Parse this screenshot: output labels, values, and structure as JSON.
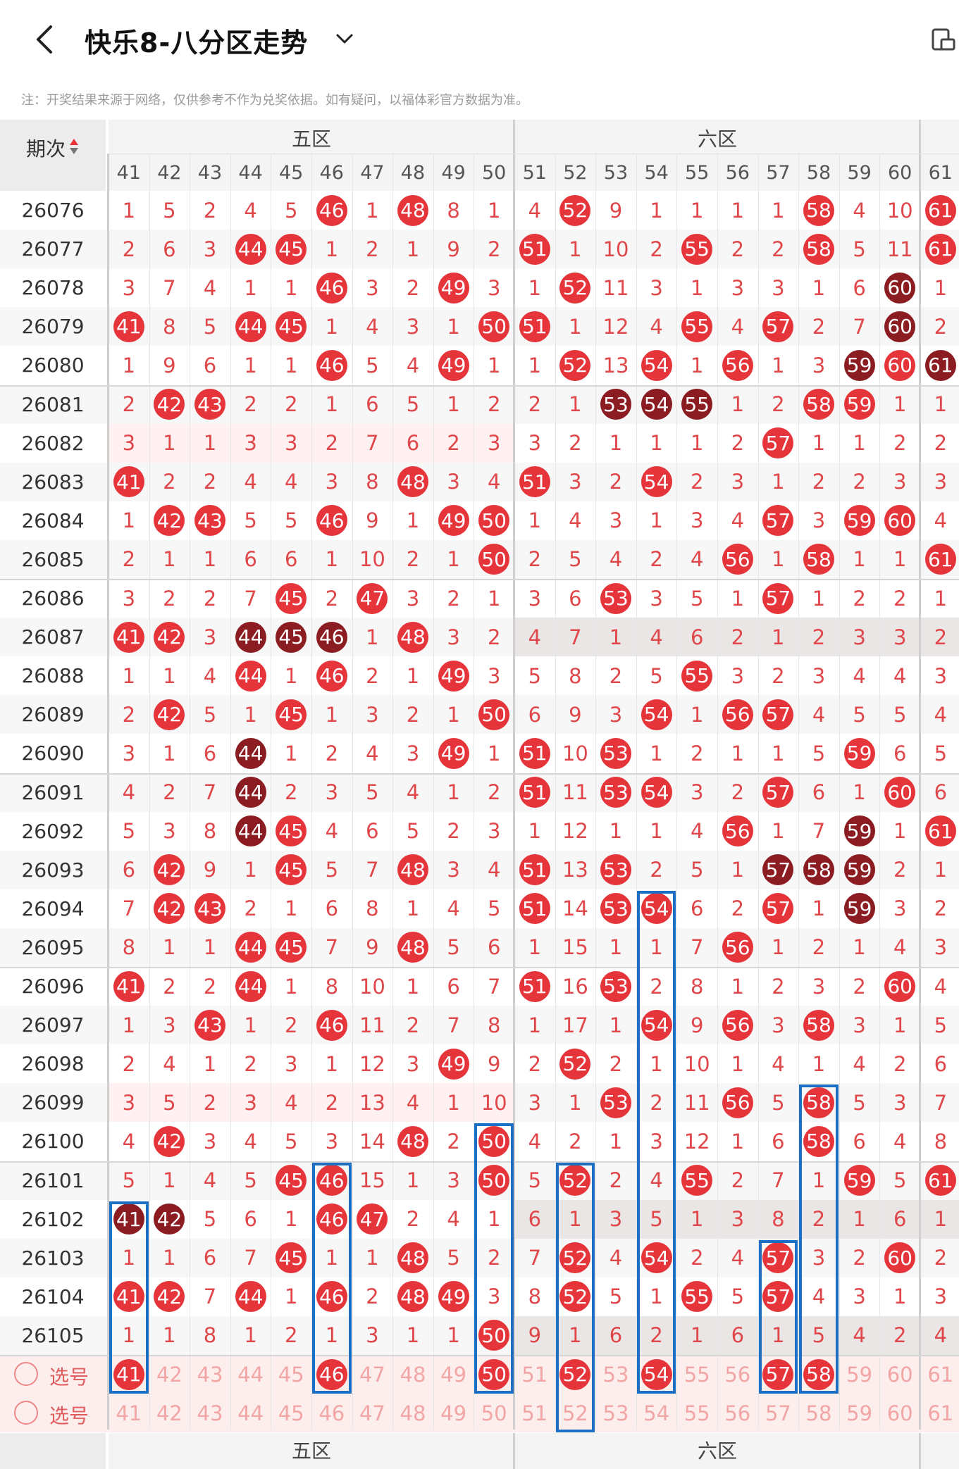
{
  "header": {
    "title": "快乐8-八分区走势",
    "notice": "注：开奖结果来源于网络，仅供参考不作为兑奖依据。如有疑问，以福体彩官方数据为准。"
  },
  "table": {
    "period_header": "期次",
    "zones": [
      "五区",
      "六区"
    ],
    "columns": [
      41,
      42,
      43,
      44,
      45,
      46,
      47,
      48,
      49,
      50,
      51,
      52,
      53,
      54,
      55,
      56,
      57,
      58,
      59,
      60,
      61
    ],
    "select_label": "选号",
    "rows": [
      {
        "period": "26076",
        "cells": [
          "1",
          "5",
          "2",
          "4",
          "5",
          "46",
          "1",
          "48",
          "8",
          "1",
          "4",
          "52",
          "9",
          "1",
          "1",
          "1",
          "1",
          "58",
          "4",
          "10",
          "61"
        ]
      },
      {
        "period": "26077",
        "cells": [
          "2",
          "6",
          "3",
          "44",
          "45",
          "1",
          "2",
          "1",
          "9",
          "2",
          "51",
          "1",
          "10",
          "2",
          "55",
          "2",
          "2",
          "58",
          "5",
          "11",
          "61"
        ]
      },
      {
        "period": "26078",
        "cells": [
          "3",
          "7",
          "4",
          "1",
          "1",
          "46",
          "3",
          "2",
          "49",
          "3",
          "1",
          "52",
          "11",
          "3",
          "1",
          "3",
          "3",
          "1",
          "6",
          "60d",
          "1"
        ]
      },
      {
        "period": "26079",
        "cells": [
          "41",
          "8",
          "5",
          "44",
          "45",
          "1",
          "4",
          "3",
          "1",
          "50",
          "51",
          "1",
          "12",
          "4",
          "55",
          "4",
          "57",
          "2",
          "7",
          "60d",
          "2"
        ]
      },
      {
        "period": "26080",
        "cells": [
          "1",
          "9",
          "6",
          "1",
          "1",
          "46",
          "5",
          "4",
          "49",
          "1",
          "1",
          "52",
          "13",
          "54",
          "1",
          "56",
          "1",
          "3",
          "59d",
          "60",
          "61d"
        ]
      },
      {
        "period": "26081",
        "cells": [
          "2",
          "42",
          "43",
          "2",
          "2",
          "1",
          "6",
          "5",
          "1",
          "2",
          "2",
          "1",
          "53d",
          "54d",
          "55d",
          "1",
          "2",
          "58",
          "59",
          "1",
          "1"
        ]
      },
      {
        "period": "26082",
        "cells": [
          "3",
          "1",
          "1",
          "3",
          "3",
          "2",
          "7",
          "6",
          "2",
          "3",
          "3",
          "2",
          "1",
          "1",
          "1",
          "2",
          "57",
          "1",
          "1",
          "2",
          "2"
        ]
      },
      {
        "period": "26083",
        "cells": [
          "41",
          "2",
          "2",
          "4",
          "4",
          "3",
          "8",
          "48",
          "3",
          "4",
          "51",
          "3",
          "2",
          "54",
          "2",
          "3",
          "1",
          "2",
          "2",
          "3",
          "3"
        ]
      },
      {
        "period": "26084",
        "cells": [
          "1",
          "42",
          "43",
          "5",
          "5",
          "46",
          "9",
          "1",
          "49",
          "50",
          "1",
          "4",
          "3",
          "1",
          "3",
          "4",
          "57",
          "3",
          "59",
          "60",
          "4"
        ]
      },
      {
        "period": "26085",
        "cells": [
          "2",
          "1",
          "1",
          "6",
          "6",
          "1",
          "10",
          "2",
          "1",
          "50",
          "2",
          "5",
          "4",
          "2",
          "4",
          "56",
          "1",
          "58",
          "1",
          "1",
          "61"
        ]
      },
      {
        "period": "26086",
        "cells": [
          "3",
          "2",
          "2",
          "7",
          "45",
          "2",
          "47",
          "3",
          "2",
          "1",
          "3",
          "6",
          "53",
          "3",
          "5",
          "1",
          "57",
          "1",
          "2",
          "2",
          "1"
        ]
      },
      {
        "period": "26087",
        "cells": [
          "41",
          "42",
          "3",
          "44d",
          "45d",
          "46d",
          "1",
          "48",
          "3",
          "2",
          "4",
          "7",
          "1",
          "4",
          "6",
          "2",
          "1",
          "2",
          "3",
          "3",
          "2"
        ]
      },
      {
        "period": "26088",
        "cells": [
          "1",
          "1",
          "4",
          "44",
          "1",
          "46",
          "2",
          "1",
          "49",
          "3",
          "5",
          "8",
          "2",
          "5",
          "55",
          "3",
          "2",
          "3",
          "4",
          "4",
          "3"
        ]
      },
      {
        "period": "26089",
        "cells": [
          "2",
          "42",
          "5",
          "1",
          "45",
          "1",
          "3",
          "2",
          "1",
          "50",
          "6",
          "9",
          "3",
          "54",
          "1",
          "56",
          "57",
          "4",
          "5",
          "5",
          "4"
        ]
      },
      {
        "period": "26090",
        "cells": [
          "3",
          "1",
          "6",
          "44d",
          "1",
          "2",
          "4",
          "3",
          "49",
          "1",
          "51",
          "10",
          "53",
          "1",
          "2",
          "1",
          "1",
          "5",
          "59",
          "6",
          "5"
        ]
      },
      {
        "period": "26091",
        "cells": [
          "4",
          "2",
          "7",
          "44d",
          "2",
          "3",
          "5",
          "4",
          "1",
          "2",
          "51",
          "11",
          "53",
          "54",
          "3",
          "2",
          "57",
          "6",
          "1",
          "60",
          "6"
        ]
      },
      {
        "period": "26092",
        "cells": [
          "5",
          "3",
          "8",
          "44d",
          "45",
          "4",
          "6",
          "5",
          "2",
          "3",
          "1",
          "12",
          "1",
          "1",
          "4",
          "56",
          "1",
          "7",
          "59d",
          "1",
          "61"
        ]
      },
      {
        "period": "26093",
        "cells": [
          "6",
          "42",
          "9",
          "1",
          "45",
          "5",
          "7",
          "48",
          "3",
          "4",
          "51",
          "13",
          "53",
          "2",
          "5",
          "1",
          "57d",
          "58d",
          "59d",
          "2",
          "1"
        ]
      },
      {
        "period": "26094",
        "cells": [
          "7",
          "42",
          "43",
          "2",
          "1",
          "6",
          "8",
          "1",
          "4",
          "5",
          "51",
          "14",
          "53",
          "54",
          "6",
          "2",
          "57",
          "1",
          "59d",
          "3",
          "2"
        ]
      },
      {
        "period": "26095",
        "cells": [
          "8",
          "1",
          "1",
          "44",
          "45",
          "7",
          "9",
          "48",
          "5",
          "6",
          "1",
          "15",
          "1",
          "1",
          "7",
          "56",
          "1",
          "2",
          "1",
          "4",
          "3"
        ]
      },
      {
        "period": "26096",
        "cells": [
          "41",
          "2",
          "2",
          "44",
          "1",
          "8",
          "10",
          "1",
          "6",
          "7",
          "51",
          "16",
          "53",
          "2",
          "8",
          "1",
          "2",
          "3",
          "2",
          "60",
          "4"
        ]
      },
      {
        "period": "26097",
        "cells": [
          "1",
          "3",
          "43",
          "1",
          "2",
          "46",
          "11",
          "2",
          "7",
          "8",
          "1",
          "17",
          "1",
          "54",
          "9",
          "56",
          "3",
          "58",
          "3",
          "1",
          "5"
        ]
      },
      {
        "period": "26098",
        "cells": [
          "2",
          "4",
          "1",
          "2",
          "3",
          "1",
          "12",
          "3",
          "49",
          "9",
          "2",
          "52",
          "2",
          "1",
          "10",
          "1",
          "4",
          "1",
          "4",
          "2",
          "6"
        ]
      },
      {
        "period": "26099",
        "cells": [
          "3",
          "5",
          "2",
          "3",
          "4",
          "2",
          "13",
          "4",
          "1",
          "10",
          "3",
          "1",
          "53",
          "2",
          "11",
          "56",
          "5",
          "58",
          "5",
          "3",
          "7"
        ]
      },
      {
        "period": "26100",
        "cells": [
          "4",
          "42",
          "3",
          "4",
          "5",
          "3",
          "14",
          "48",
          "2",
          "50",
          "4",
          "2",
          "1",
          "3",
          "12",
          "1",
          "6",
          "58",
          "6",
          "4",
          "8"
        ]
      },
      {
        "period": "26101",
        "cells": [
          "5",
          "1",
          "4",
          "5",
          "45",
          "46",
          "15",
          "1",
          "3",
          "50",
          "5",
          "52",
          "2",
          "4",
          "55",
          "2",
          "7",
          "1",
          "59",
          "5",
          "61"
        ]
      },
      {
        "period": "26102",
        "cells": [
          "41d",
          "42d",
          "5",
          "6",
          "1",
          "46",
          "47",
          "2",
          "4",
          "1",
          "6",
          "1",
          "3",
          "5",
          "1",
          "3",
          "8",
          "2",
          "1",
          "6",
          "1"
        ]
      },
      {
        "period": "26103",
        "cells": [
          "1",
          "1",
          "6",
          "7",
          "45",
          "1",
          "1",
          "48",
          "5",
          "2",
          "7",
          "52",
          "4",
          "54",
          "2",
          "4",
          "57",
          "3",
          "2",
          "60",
          "2"
        ]
      },
      {
        "period": "26104",
        "cells": [
          "41",
          "42",
          "7",
          "44",
          "1",
          "46",
          "2",
          "48",
          "49",
          "3",
          "8",
          "52",
          "5",
          "1",
          "55",
          "5",
          "57",
          "4",
          "3",
          "1",
          "3"
        ]
      },
      {
        "period": "26105",
        "cells": [
          "1",
          "1",
          "8",
          "1",
          "2",
          "1",
          "3",
          "1",
          "1",
          "50",
          "9",
          "1",
          "6",
          "2",
          "1",
          "6",
          "1",
          "5",
          "4",
          "2",
          "4"
        ]
      }
    ],
    "select_row1": [
      "41b",
      "42",
      "43",
      "44",
      "45",
      "46b",
      "47",
      "48",
      "49",
      "50b",
      "51",
      "52b",
      "53",
      "54b",
      "55",
      "56",
      "57b",
      "58b",
      "59",
      "60",
      "61"
    ],
    "select_row2": [
      "41",
      "42",
      "43",
      "44",
      "45",
      "46",
      "47",
      "48",
      "49",
      "50",
      "51",
      "52",
      "53",
      "54",
      "55",
      "56",
      "57",
      "58",
      "59",
      "60",
      "61"
    ],
    "colors": {
      "ball": "#e5353b",
      "ball_dark": "#8b1c22",
      "highlight_box": "#1d6fc4"
    }
  }
}
